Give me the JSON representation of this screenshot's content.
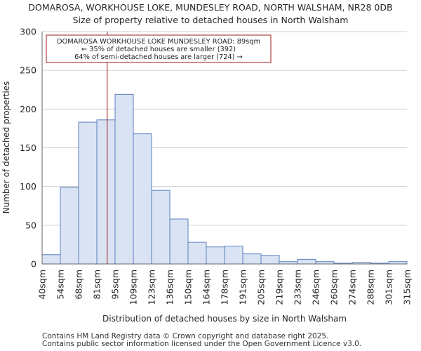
{
  "chart_data": {
    "type": "histogram",
    "title": "DOMAROSA, WORKHOUSE LOKE, MUNDESLEY ROAD, NORTH WALSHAM, NR28 0DB",
    "subtitle": "Size of property relative to detached houses in North Walsham",
    "xlabel": "Distribution of detached houses by size in North Walsham",
    "ylabel": "Number of detached properties",
    "ylim": [
      0,
      300
    ],
    "yticks": [
      0,
      50,
      100,
      150,
      200,
      250,
      300
    ],
    "categories": [
      "40sqm",
      "54sqm",
      "68sqm",
      "81sqm",
      "95sqm",
      "109sqm",
      "123sqm",
      "136sqm",
      "150sqm",
      "164sqm",
      "178sqm",
      "191sqm",
      "205sqm",
      "219sqm",
      "233sqm",
      "246sqm",
      "260sqm",
      "274sqm",
      "288sqm",
      "301sqm",
      "315sqm"
    ],
    "values": [
      12,
      99,
      183,
      186,
      219,
      168,
      95,
      58,
      28,
      22,
      23,
      13,
      11,
      3,
      6,
      3,
      1,
      2,
      1,
      3
    ],
    "bar_color": "#dae3f3",
    "bar_edge_color": "#5b7fbf",
    "marker": {
      "value_sqm": 89,
      "position_bins": 3.57,
      "color": "#a01c1c"
    },
    "annotation": {
      "lines": [
        "DOMAROSA WORKHOUSE LOKE MUNDESLEY ROAD: 89sqm",
        "← 35% of detached houses are smaller (392)",
        "64% of semi-detached houses are larger (724) →"
      ],
      "border_color": "#a01c1c"
    },
    "grid": true
  },
  "footer": {
    "line1": "Contains HM Land Registry data © Crown copyright and database right 2025.",
    "line2": "Contains public sector information licensed under the Open Government Licence v3.0."
  }
}
